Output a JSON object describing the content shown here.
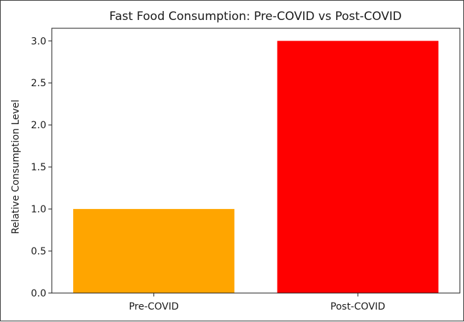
{
  "chart_data": {
    "type": "bar",
    "title": "Fast Food Consumption: Pre-COVID vs Post-COVID",
    "xlabel": "",
    "ylabel": "Relative Consumption Level",
    "categories": [
      "Pre-COVID",
      "Post-COVID"
    ],
    "values": [
      1,
      3
    ],
    "colors": [
      "#ffa500",
      "#ff0000"
    ],
    "ylim": [
      0,
      3.15
    ],
    "yticks": [
      "0.0",
      "0.5",
      "1.0",
      "1.5",
      "2.0",
      "2.5",
      "3.0"
    ],
    "grid": false,
    "legend": "none"
  }
}
